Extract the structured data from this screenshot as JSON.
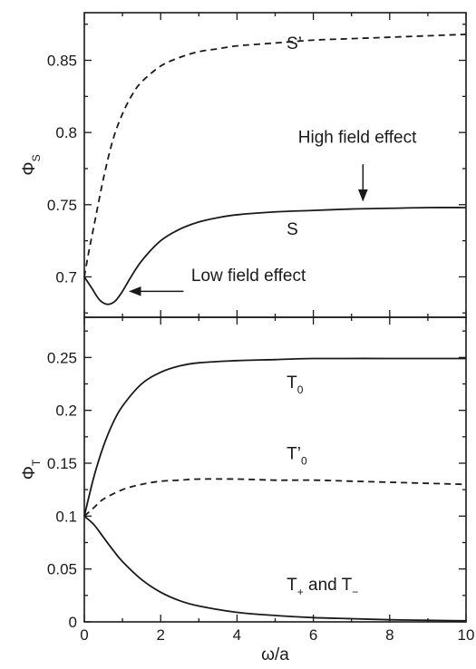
{
  "chart_data": [
    {
      "type": "line",
      "panel": "top",
      "ylabel": "Φ",
      "ylabel_sub": "S",
      "xlim": [
        0,
        10
      ],
      "ylim": [
        0.672,
        0.883
      ],
      "yticks": [
        0.7,
        0.75,
        0.8,
        0.85
      ],
      "ytick_labels": [
        "0.7",
        "0.75",
        "0.8",
        "0.85"
      ],
      "series": [
        {
          "name": "S",
          "style": "solid",
          "x": [
            0,
            0.2,
            0.4,
            0.6,
            0.8,
            1.0,
            1.2,
            1.5,
            2.0,
            2.5,
            3.0,
            3.5,
            4.0,
            5.0,
            6.0,
            7.0,
            8.0,
            9.0,
            10.0
          ],
          "y": [
            0.7,
            0.692,
            0.684,
            0.681,
            0.683,
            0.69,
            0.699,
            0.711,
            0.725,
            0.733,
            0.738,
            0.741,
            0.743,
            0.745,
            0.746,
            0.747,
            0.7475,
            0.748,
            0.748
          ]
        },
        {
          "name": "S’",
          "style": "dashed",
          "x": [
            0,
            0.1,
            0.25,
            0.5,
            0.75,
            1.0,
            1.25,
            1.5,
            2.0,
            2.5,
            3.0,
            3.5,
            4.0,
            5.0,
            6.0,
            7.0,
            8.0,
            9.0,
            10.0
          ],
          "y": [
            0.7,
            0.715,
            0.735,
            0.768,
            0.795,
            0.813,
            0.826,
            0.835,
            0.846,
            0.852,
            0.856,
            0.858,
            0.86,
            0.862,
            0.864,
            0.865,
            0.866,
            0.867,
            0.868
          ]
        }
      ],
      "labels": [
        {
          "text": "S’",
          "x": 5.3,
          "y": 0.858
        },
        {
          "text": "S",
          "x": 5.3,
          "y": 0.729
        }
      ],
      "annotations": [
        {
          "text": "High field effect",
          "x": 5.6,
          "y": 0.793,
          "arrow_from": [
            7.3,
            0.778
          ],
          "arrow_to": [
            7.3,
            0.753
          ]
        },
        {
          "text": "Low field effect",
          "x": 2.8,
          "y": 0.697,
          "arrow_from": [
            2.6,
            0.69
          ],
          "arrow_to": [
            1.2,
            0.69
          ]
        }
      ]
    },
    {
      "type": "line",
      "panel": "bottom",
      "xlabel": "ω/a",
      "ylabel": "Φ",
      "ylabel_sub": "T",
      "xlim": [
        0,
        10
      ],
      "ylim": [
        0,
        0.288
      ],
      "xticks": [
        0,
        2,
        4,
        6,
        8,
        10
      ],
      "xtick_labels": [
        "0",
        "2",
        "4",
        "6",
        "8",
        "10"
      ],
      "yticks": [
        0,
        0.05,
        0.1,
        0.15,
        0.2,
        0.25
      ],
      "ytick_labels": [
        "0",
        "0.05",
        "0.1",
        "0.15",
        "0.2",
        "0.25"
      ],
      "series": [
        {
          "name": "T0",
          "style": "solid",
          "x": [
            0,
            0.25,
            0.5,
            0.75,
            1.0,
            1.5,
            2.0,
            2.5,
            3.0,
            4.0,
            5.0,
            6.0,
            8.0,
            10.0
          ],
          "y": [
            0.1,
            0.137,
            0.166,
            0.188,
            0.204,
            0.225,
            0.236,
            0.242,
            0.245,
            0.247,
            0.248,
            0.249,
            0.249,
            0.249
          ]
        },
        {
          "name": "T'0",
          "style": "dashed",
          "x": [
            0,
            0.25,
            0.5,
            1.0,
            1.5,
            2.0,
            2.5,
            3.0,
            4.0,
            5.0,
            6.0,
            7.0,
            8.0,
            9.0,
            10.0
          ],
          "y": [
            0.1,
            0.108,
            0.116,
            0.125,
            0.13,
            0.133,
            0.134,
            0.135,
            0.135,
            0.134,
            0.134,
            0.133,
            0.132,
            0.131,
            0.13
          ]
        },
        {
          "name": "T+ and T-",
          "style": "solid",
          "x": [
            0,
            0.25,
            0.5,
            0.75,
            1.0,
            1.5,
            2.0,
            2.5,
            3.0,
            4.0,
            5.0,
            6.0,
            7.0,
            8.0,
            9.0,
            10.0
          ],
          "y": [
            0.1,
            0.092,
            0.08,
            0.068,
            0.057,
            0.04,
            0.028,
            0.02,
            0.015,
            0.009,
            0.006,
            0.004,
            0.003,
            0.002,
            0.0015,
            0.001
          ]
        }
      ],
      "labels": [
        {
          "text": "T",
          "sub": "0",
          "x": 5.3,
          "y": 0.221
        },
        {
          "text": "T’",
          "sub": "0",
          "x": 5.3,
          "y": 0.154
        },
        {
          "text": "T",
          "sub": "+",
          "tail": " and T",
          "tail_sub": "−",
          "x": 5.3,
          "y": 0.03
        }
      ]
    }
  ]
}
